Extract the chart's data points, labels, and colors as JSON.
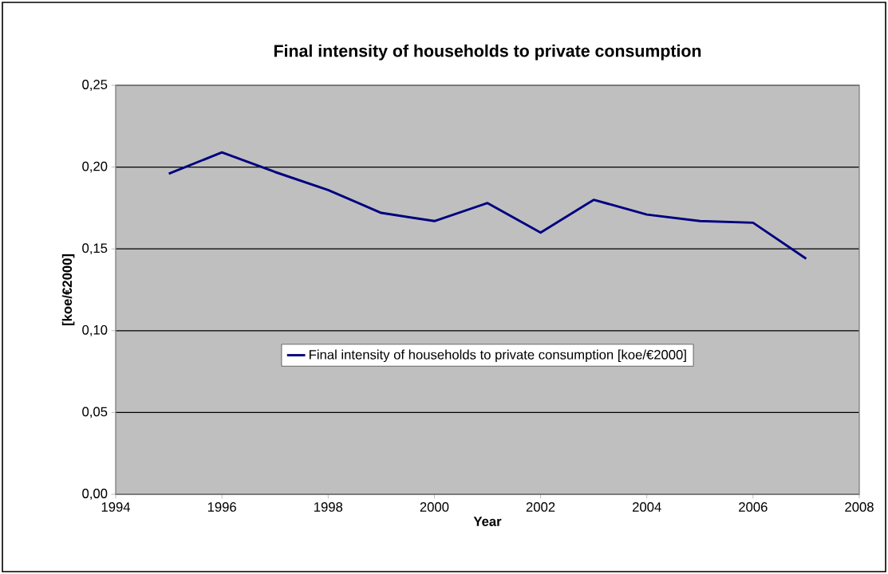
{
  "chart_data": {
    "type": "line",
    "title": "Final intensity of households to private consumption",
    "xlabel": "Year",
    "ylabel": "[koe/€2000]",
    "x": [
      1995,
      1996,
      1997,
      1998,
      1999,
      2000,
      2001,
      2002,
      2003,
      2004,
      2005,
      2006,
      2007
    ],
    "series": [
      {
        "name": "Final intensity of households to private consumption  [koe/€2000]",
        "color": "#000080",
        "values": [
          0.196,
          0.209,
          0.197,
          0.186,
          0.172,
          0.167,
          0.178,
          0.16,
          0.18,
          0.171,
          0.167,
          0.166,
          0.144
        ]
      }
    ],
    "xlim": [
      1994,
      2008
    ],
    "xticks": [
      1994,
      1996,
      1998,
      2000,
      2002,
      2004,
      2006,
      2008
    ],
    "ylim": [
      0,
      0.25
    ],
    "yticks": [
      {
        "value": 0,
        "label": "0,00"
      },
      {
        "value": 0.05,
        "label": "0,05"
      },
      {
        "value": 0.1,
        "label": "0,10"
      },
      {
        "value": 0.15,
        "label": "0,15"
      },
      {
        "value": 0.2,
        "label": "0,20"
      },
      {
        "value": 0.25,
        "label": "0,25"
      }
    ],
    "grid": "y",
    "legend": "center",
    "marker": "none",
    "line_style": "solid"
  }
}
